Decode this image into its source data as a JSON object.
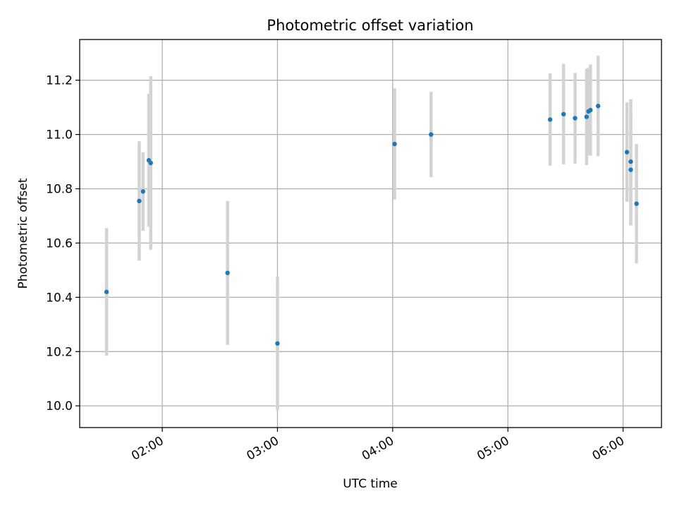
{
  "chart_data": {
    "type": "scatter",
    "title": "Photometric offset variation",
    "xlabel": "UTC time",
    "ylabel": "Photometric offset",
    "xlim": [
      "01:17",
      "06:20"
    ],
    "ylim": [
      9.92,
      11.35
    ],
    "x_ticks": [
      "02:00",
      "03:00",
      "04:00",
      "05:00",
      "06:00"
    ],
    "y_ticks": [
      10.0,
      10.2,
      10.4,
      10.6,
      10.8,
      11.0,
      11.2
    ],
    "y_tick_labels": [
      "10.0",
      "10.2",
      "10.4",
      "10.6",
      "10.8",
      "11.0",
      "11.2"
    ],
    "grid": true,
    "colors": {
      "marker": "#1f77b4",
      "errorbar": "#d3d3d3",
      "grid": "#b0b0b0"
    },
    "points": [
      {
        "x": "01:31",
        "y": 10.42,
        "err": 0.235
      },
      {
        "x": "01:48",
        "y": 10.755,
        "err": 0.22
      },
      {
        "x": "01:50",
        "y": 10.79,
        "err": 0.145
      },
      {
        "x": "01:53",
        "y": 10.905,
        "err": 0.245
      },
      {
        "x": "01:54",
        "y": 10.895,
        "err": 0.32
      },
      {
        "x": "02:34",
        "y": 10.49,
        "err": 0.265
      },
      {
        "x": "03:00",
        "y": 10.23,
        "err": 0.245
      },
      {
        "x": "04:01",
        "y": 10.965,
        "err": 0.205
      },
      {
        "x": "04:20",
        "y": 11.0,
        "err": 0.157
      },
      {
        "x": "05:22",
        "y": 11.055,
        "err": 0.17
      },
      {
        "x": "05:29",
        "y": 11.075,
        "err": 0.185
      },
      {
        "x": "05:35",
        "y": 11.06,
        "err": 0.167
      },
      {
        "x": "05:41",
        "y": 11.065,
        "err": 0.178
      },
      {
        "x": "05:42",
        "y": 11.085,
        "err": 0.16
      },
      {
        "x": "05:43",
        "y": 11.09,
        "err": 0.168
      },
      {
        "x": "05:47",
        "y": 11.105,
        "err": 0.185
      },
      {
        "x": "06:02",
        "y": 10.935,
        "err": 0.183
      },
      {
        "x": "06:04",
        "y": 10.9,
        "err": 0.23
      },
      {
        "x": "06:04",
        "y": 10.87,
        "err": 0.205
      },
      {
        "x": "06:07",
        "y": 10.745,
        "err": 0.22
      }
    ]
  }
}
